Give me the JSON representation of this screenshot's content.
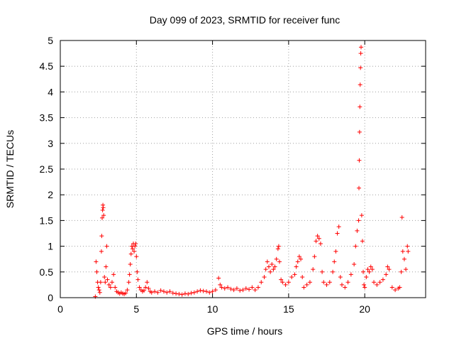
{
  "chart_data": {
    "type": "scatter",
    "title": "Day 099 of 2023, SRMTID for receiver func",
    "xlabel": "GPS time / hours",
    "ylabel": "SRMTID / TECUs",
    "xlim": [
      0,
      24
    ],
    "ylim": [
      0,
      5
    ],
    "xticks": [
      0,
      5,
      10,
      15,
      20
    ],
    "xtick_labels": [
      "0",
      "5",
      "10",
      "15",
      "20"
    ],
    "yticks": [
      0,
      0.5,
      1,
      1.5,
      2,
      2.5,
      3,
      3.5,
      4,
      4.5,
      5
    ],
    "ytick_labels": [
      "0",
      "0.5",
      "1",
      "1.5",
      "2",
      "2.5",
      "3",
      "3.5",
      "4",
      "4.5",
      "5"
    ],
    "grid": true,
    "marker": "+",
    "color": "#ff0000",
    "series": [
      {
        "name": "SRMTID",
        "points": [
          [
            2.3,
            0.02
          ],
          [
            2.35,
            0.7
          ],
          [
            2.4,
            0.5
          ],
          [
            2.45,
            0.3
          ],
          [
            2.5,
            0.2
          ],
          [
            2.55,
            0.15
          ],
          [
            2.6,
            0.1
          ],
          [
            2.65,
            0.3
          ],
          [
            2.7,
            0.9
          ],
          [
            2.72,
            1.2
          ],
          [
            2.75,
            1.55
          ],
          [
            2.78,
            1.7
          ],
          [
            2.8,
            1.8
          ],
          [
            2.82,
            1.75
          ],
          [
            2.85,
            1.6
          ],
          [
            2.9,
            0.4
          ],
          [
            2.95,
            0.3
          ],
          [
            3.0,
            0.6
          ],
          [
            3.05,
            1.0
          ],
          [
            3.1,
            0.35
          ],
          [
            3.2,
            0.25
          ],
          [
            3.3,
            0.2
          ],
          [
            3.4,
            0.3
          ],
          [
            3.5,
            0.45
          ],
          [
            3.6,
            0.2
          ],
          [
            3.7,
            0.12
          ],
          [
            3.8,
            0.1
          ],
          [
            3.9,
            0.08
          ],
          [
            4.0,
            0.1
          ],
          [
            4.1,
            0.08
          ],
          [
            4.2,
            0.07
          ],
          [
            4.3,
            0.09
          ],
          [
            4.4,
            0.15
          ],
          [
            4.5,
            0.3
          ],
          [
            4.55,
            0.45
          ],
          [
            4.6,
            0.65
          ],
          [
            4.65,
            0.85
          ],
          [
            4.7,
            1.0
          ],
          [
            4.75,
            0.95
          ],
          [
            4.8,
            1.05
          ],
          [
            4.85,
            0.9
          ],
          [
            4.9,
            1.0
          ],
          [
            4.95,
            1.05
          ],
          [
            5.0,
            0.8
          ],
          [
            5.05,
            0.5
          ],
          [
            5.1,
            0.35
          ],
          [
            5.2,
            0.2
          ],
          [
            5.3,
            0.15
          ],
          [
            5.4,
            0.12
          ],
          [
            5.5,
            0.14
          ],
          [
            5.6,
            0.2
          ],
          [
            5.7,
            0.3
          ],
          [
            5.8,
            0.18
          ],
          [
            5.9,
            0.12
          ],
          [
            6.0,
            0.1
          ],
          [
            6.2,
            0.12
          ],
          [
            6.4,
            0.1
          ],
          [
            6.6,
            0.14
          ],
          [
            6.8,
            0.12
          ],
          [
            7.0,
            0.1
          ],
          [
            7.2,
            0.12
          ],
          [
            7.4,
            0.09
          ],
          [
            7.6,
            0.08
          ],
          [
            7.8,
            0.07
          ],
          [
            8.0,
            0.06
          ],
          [
            8.2,
            0.08
          ],
          [
            8.4,
            0.07
          ],
          [
            8.6,
            0.09
          ],
          [
            8.8,
            0.1
          ],
          [
            9.0,
            0.12
          ],
          [
            9.2,
            0.14
          ],
          [
            9.4,
            0.13
          ],
          [
            9.6,
            0.12
          ],
          [
            9.8,
            0.1
          ],
          [
            10.0,
            0.12
          ],
          [
            10.2,
            0.15
          ],
          [
            10.4,
            0.38
          ],
          [
            10.5,
            0.25
          ],
          [
            10.6,
            0.2
          ],
          [
            10.8,
            0.18
          ],
          [
            11.0,
            0.2
          ],
          [
            11.2,
            0.17
          ],
          [
            11.4,
            0.15
          ],
          [
            11.6,
            0.18
          ],
          [
            11.8,
            0.14
          ],
          [
            12.0,
            0.15
          ],
          [
            12.2,
            0.18
          ],
          [
            12.4,
            0.16
          ],
          [
            12.6,
            0.2
          ],
          [
            12.8,
            0.15
          ],
          [
            13.0,
            0.2
          ],
          [
            13.2,
            0.3
          ],
          [
            13.4,
            0.4
          ],
          [
            13.5,
            0.55
          ],
          [
            13.6,
            0.7
          ],
          [
            13.7,
            0.6
          ],
          [
            13.8,
            0.5
          ],
          [
            13.9,
            0.65
          ],
          [
            14.0,
            0.55
          ],
          [
            14.1,
            0.6
          ],
          [
            14.2,
            0.75
          ],
          [
            14.3,
            0.95
          ],
          [
            14.35,
            1.0
          ],
          [
            14.4,
            0.7
          ],
          [
            14.5,
            0.35
          ],
          [
            14.6,
            0.3
          ],
          [
            14.8,
            0.25
          ],
          [
            15.0,
            0.3
          ],
          [
            15.2,
            0.4
          ],
          [
            15.4,
            0.45
          ],
          [
            15.5,
            0.6
          ],
          [
            15.6,
            0.7
          ],
          [
            15.7,
            0.8
          ],
          [
            15.8,
            0.75
          ],
          [
            15.9,
            0.4
          ],
          [
            16.0,
            0.2
          ],
          [
            16.2,
            0.25
          ],
          [
            16.4,
            0.3
          ],
          [
            16.6,
            0.55
          ],
          [
            16.7,
            0.8
          ],
          [
            16.8,
            1.1
          ],
          [
            16.9,
            1.2
          ],
          [
            17.0,
            1.15
          ],
          [
            17.1,
            1.05
          ],
          [
            17.2,
            0.5
          ],
          [
            17.3,
            0.3
          ],
          [
            17.5,
            0.25
          ],
          [
            17.7,
            0.3
          ],
          [
            17.9,
            0.5
          ],
          [
            18.0,
            0.7
          ],
          [
            18.1,
            0.9
          ],
          [
            18.2,
            1.25
          ],
          [
            18.3,
            1.38
          ],
          [
            18.4,
            0.4
          ],
          [
            18.5,
            0.25
          ],
          [
            18.7,
            0.2
          ],
          [
            18.9,
            0.3
          ],
          [
            19.1,
            0.45
          ],
          [
            19.3,
            0.65
          ],
          [
            19.4,
            1.0
          ],
          [
            19.5,
            1.3
          ],
          [
            19.6,
            1.5
          ],
          [
            19.62,
            2.13
          ],
          [
            19.64,
            2.67
          ],
          [
            19.66,
            3.22
          ],
          [
            19.68,
            3.71
          ],
          [
            19.7,
            4.14
          ],
          [
            19.72,
            4.47
          ],
          [
            19.74,
            4.75
          ],
          [
            19.76,
            4.87
          ],
          [
            19.8,
            1.6
          ],
          [
            19.85,
            1.1
          ],
          [
            19.9,
            0.5
          ],
          [
            19.95,
            0.25
          ],
          [
            20.0,
            0.2
          ],
          [
            20.1,
            0.4
          ],
          [
            20.2,
            0.55
          ],
          [
            20.3,
            0.5
          ],
          [
            20.4,
            0.6
          ],
          [
            20.5,
            0.55
          ],
          [
            20.6,
            0.3
          ],
          [
            20.8,
            0.25
          ],
          [
            21.0,
            0.3
          ],
          [
            21.2,
            0.35
          ],
          [
            21.4,
            0.45
          ],
          [
            21.5,
            0.6
          ],
          [
            21.6,
            0.55
          ],
          [
            21.8,
            0.2
          ],
          [
            22.0,
            0.15
          ],
          [
            22.2,
            0.18
          ],
          [
            22.3,
            0.2
          ],
          [
            22.4,
            0.5
          ],
          [
            22.45,
            1.56
          ],
          [
            22.5,
            0.9
          ],
          [
            22.6,
            0.75
          ],
          [
            22.7,
            0.55
          ],
          [
            22.8,
            1.0
          ],
          [
            22.85,
            0.9
          ]
        ]
      }
    ]
  }
}
